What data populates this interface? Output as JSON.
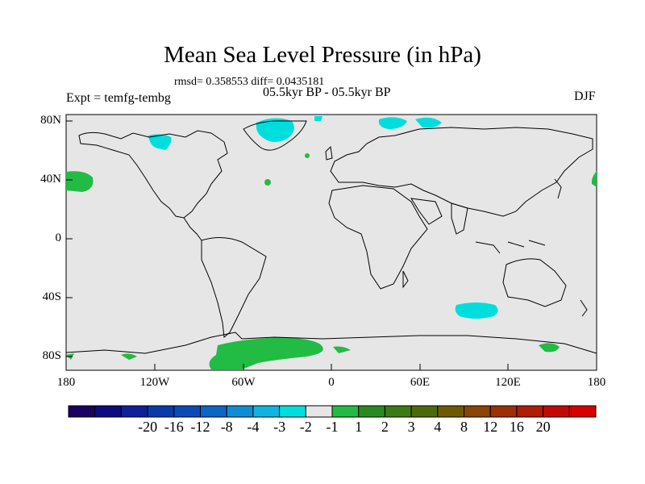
{
  "title": "Mean Sea Level Pressure (in hPa)",
  "stats": "rmsd= 0.358553 diff= 0.0435181",
  "period": "05.5kyr BP - 05.5kyr BP",
  "experiment": "Expt = temfg-tembg",
  "season": "DJF",
  "colors": {
    "background_field": "#e6e6e6",
    "positive_1_2": "#22bb44",
    "negative_m2_m1": "#00dddd",
    "coastline": "#000000"
  },
  "axes": {
    "lat_ticks": [
      "80N",
      "40N",
      "0",
      "40S",
      "80S"
    ],
    "lon_ticks": [
      "180",
      "120W",
      "60W",
      "0",
      "60E",
      "120E",
      "180"
    ]
  },
  "colorbar": {
    "colors": [
      "#1a0060",
      "#0c0c80",
      "#10209a",
      "#0a3aaa",
      "#0a4ab8",
      "#0c66c4",
      "#0e8ed2",
      "#10b4e0",
      "#00dede",
      "#e6e6e6",
      "#22bb44",
      "#2a8a22",
      "#3d7a16",
      "#4c6a0c",
      "#6e5a06",
      "#8a4404",
      "#9c3004",
      "#b01c04",
      "#c20a04",
      "#d80000"
    ],
    "labels": [
      "-20",
      "-16",
      "-12",
      "-8",
      "-4",
      "-3",
      "-2",
      "-1",
      "1",
      "2",
      "3",
      "4",
      "8",
      "12",
      "16",
      "20"
    ]
  }
}
